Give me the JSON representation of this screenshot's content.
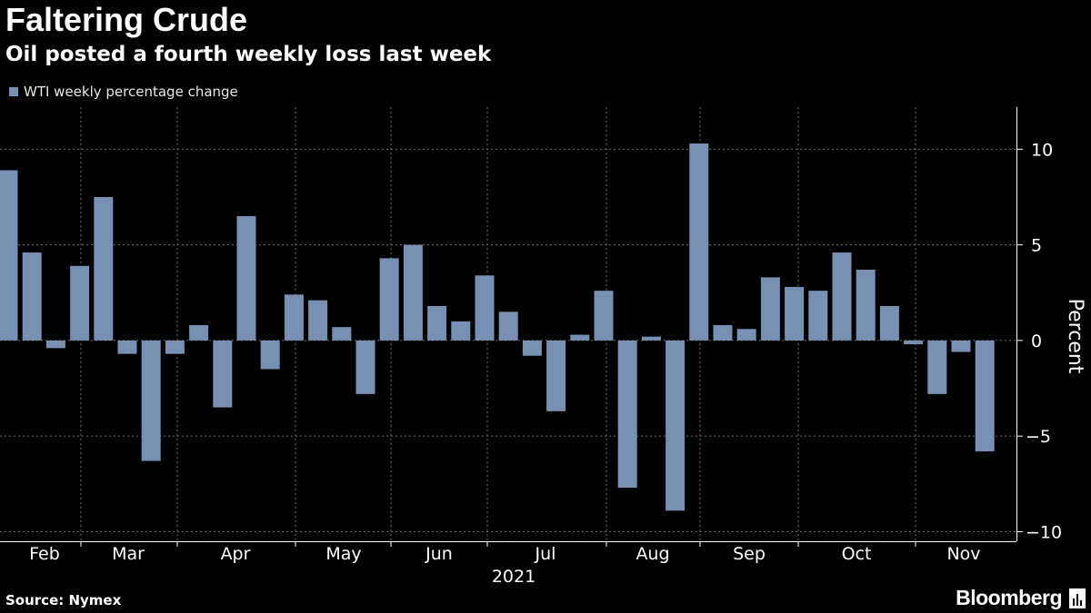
{
  "header": {
    "title": "Faltering Crude",
    "subtitle": "Oil posted a fourth weekly loss last week"
  },
  "footer": {
    "source": "Source: Nymex",
    "brand": "Bloomberg"
  },
  "colors": {
    "bar": "#7990b5",
    "grid": "#6b6b6b",
    "axis": "#ffffff",
    "background": "#000000"
  },
  "chart_data": {
    "type": "bar",
    "title": "Faltering Crude",
    "subtitle": "Oil posted a fourth weekly loss last week",
    "legend": [
      "WTI weekly percentage change"
    ],
    "legend_position": "top-left",
    "xlabel": "2021",
    "ylabel": "Percent",
    "y_axis_side": "right",
    "ylim": [
      -10.5,
      12.2
    ],
    "yticks": [
      10,
      5,
      0,
      -5,
      -10
    ],
    "grid": true,
    "month_ticks": [
      "Feb",
      "Mar",
      "Apr",
      "May",
      "Jun",
      "Jul",
      "Aug",
      "Sep",
      "Oct",
      "Nov"
    ],
    "series": [
      {
        "name": "WTI weekly percentage change",
        "values": [
          8.9,
          4.6,
          -0.4,
          3.9,
          7.5,
          -0.7,
          -6.3,
          -0.7,
          0.8,
          -3.5,
          6.5,
          -1.5,
          2.4,
          2.1,
          0.7,
          -2.8,
          4.3,
          5.0,
          1.8,
          1.0,
          3.4,
          1.5,
          -0.8,
          -3.7,
          0.3,
          2.6,
          -7.7,
          0.2,
          -8.9,
          10.3,
          0.8,
          0.6,
          3.3,
          2.8,
          2.6,
          4.6,
          3.7,
          1.8,
          -0.2,
          -2.8,
          -0.6,
          -5.8
        ]
      }
    ]
  }
}
